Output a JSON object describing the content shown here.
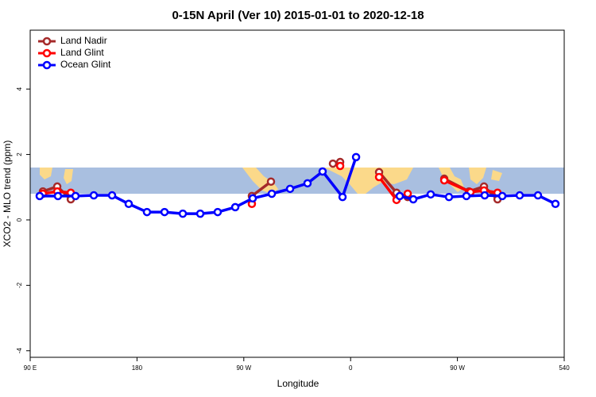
{
  "chart_data": {
    "type": "line",
    "title": "0-15N April (Ver 10)   2015-01-01 to 2020-12-18",
    "x_label": "Longitude",
    "y_label": "XCO2 - MLO trend (ppm)",
    "xlim": [
      90,
      540
    ],
    "xticks": [
      {
        "value": 90,
        "label": "90 E"
      },
      180,
      {
        "value": 270,
        "label": "90 W"
      },
      {
        "value": 360,
        "label": "0"
      },
      {
        "value": 450,
        "label": "90 W"
      },
      540
    ],
    "ylim": [
      -4.2,
      5.8
    ],
    "yticks": [
      -4,
      -2,
      0,
      2,
      4
    ],
    "legend_position": "top-left",
    "series": [
      {
        "name": "Land Nadir",
        "color": "#a52a2a",
        "x": [
          100.7,
          112.8,
          124.2,
          null,
          276.8,
          292.9,
          null,
          345.1,
          351.2,
          null,
          384.0,
          398.7,
          408.1,
          null,
          438.9,
          459.7,
          472.4,
          483.8
        ],
        "values": [
          0.87,
          1.02,
          0.63,
          null,
          0.73,
          1.17,
          null,
          1.72,
          1.77,
          null,
          1.46,
          0.83,
          0.7,
          null,
          1.26,
          0.87,
          1.02,
          0.63
        ]
      },
      {
        "name": "Land Glint",
        "color": "#ff0000",
        "x": [
          100.7,
          112.8,
          124.2,
          null,
          276.8,
          null,
          351.2,
          null,
          384.0,
          398.7,
          408.1,
          null,
          438.9,
          461.0,
          472.4,
          483.8
        ],
        "values": [
          0.8,
          0.87,
          0.83,
          null,
          0.49,
          null,
          1.65,
          null,
          1.31,
          0.61,
          0.8,
          null,
          1.21,
          0.85,
          0.9,
          0.83
        ]
      },
      {
        "name": "Ocean Glint",
        "color": "#0000ff",
        "x": [
          98.0,
          113.4,
          128.2,
          143.6,
          159.0,
          173.0,
          188.4,
          203.2,
          218.6,
          233.3,
          248.0,
          262.8,
          277.5,
          293.6,
          309.0,
          323.7,
          336.4,
          353.2,
          364.6,
          null,
          401.4,
          412.8,
          427.5,
          442.9,
          457.6,
          473.0,
          487.8,
          502.5,
          517.9,
          532.6
        ],
        "values": [
          0.73,
          0.73,
          0.73,
          0.75,
          0.75,
          0.49,
          0.24,
          0.24,
          0.19,
          0.19,
          0.24,
          0.39,
          0.66,
          0.8,
          0.95,
          1.12,
          1.48,
          0.7,
          1.92,
          null,
          0.73,
          0.63,
          0.78,
          0.7,
          0.73,
          0.75,
          0.73,
          0.75,
          0.75,
          0.49
        ]
      }
    ]
  }
}
